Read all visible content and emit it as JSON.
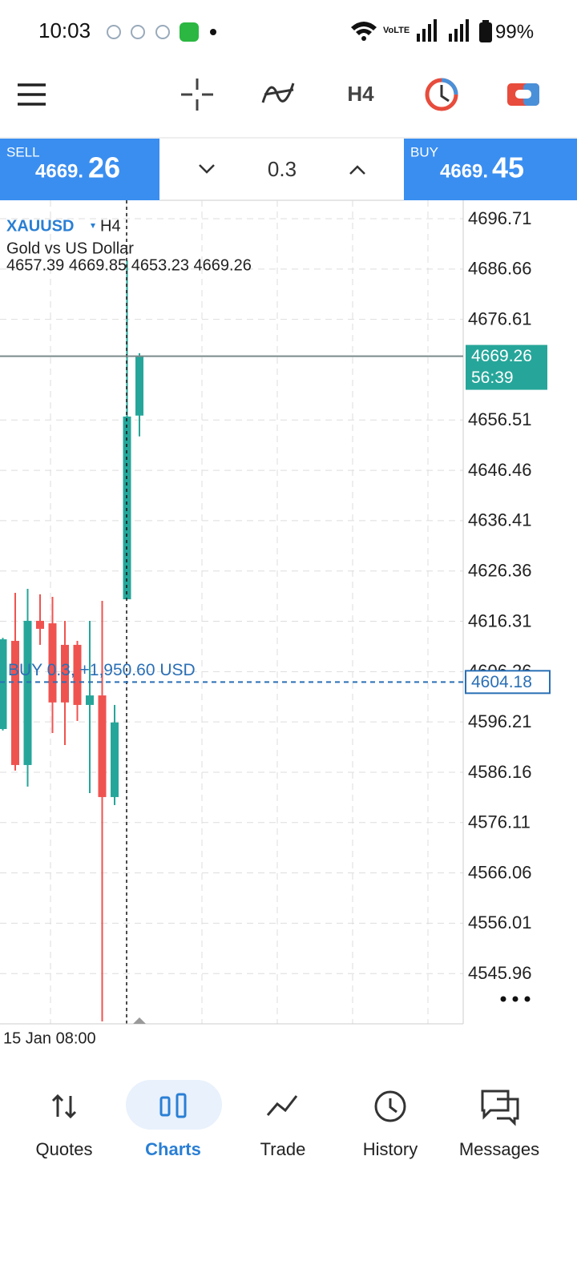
{
  "status_bar": {
    "time": "10:03",
    "battery": "99%"
  },
  "toolbar": {
    "timeframe": "H4"
  },
  "trade_panel": {
    "sell_label": "SELL",
    "sell_price_main": "4669.",
    "sell_price_pips": "26",
    "lot": "0.3",
    "buy_label": "BUY",
    "buy_price_main": "4669.",
    "buy_price_pips": "45"
  },
  "chart": {
    "symbol": "XAUUSD",
    "timeframe": "H4",
    "description": "Gold vs US Dollar",
    "ohlc_text": "4657.39 4669.85 4653.23 4669.26",
    "bid_price": 4669.26,
    "timer": "56:39",
    "position_label": "BUY 0.3, +1,950.60 USD",
    "position_price": 4604.18,
    "time_label": "15 Jan 08:00",
    "ylim": [
      4535.91,
      4700.39
    ],
    "yticks": [
      4696.71,
      4686.66,
      4676.61,
      4656.51,
      4646.46,
      4636.41,
      4626.36,
      4616.31,
      4606.26,
      4596.21,
      4586.16,
      4576.11,
      4566.06,
      4556.01,
      4545.96
    ],
    "up_color": "#26a69a",
    "down_color": "#ef5350",
    "candles": [
      {
        "open": 4594.79,
        "high": 4613.0,
        "low": 4594.5,
        "close": 4612.71
      },
      {
        "open": 4612.4,
        "high": 4622.0,
        "low": 4586.5,
        "close": 4587.6
      },
      {
        "open": 4587.6,
        "high": 4622.8,
        "low": 4583.3,
        "close": 4616.4
      },
      {
        "open": 4616.4,
        "high": 4621.7,
        "low": 4611.6,
        "close": 4614.8
      },
      {
        "open": 4615.9,
        "high": 4621.2,
        "low": 4594.0,
        "close": 4600.1
      },
      {
        "open": 4611.6,
        "high": 4616.4,
        "low": 4591.6,
        "close": 4600.1
      },
      {
        "open": 4611.6,
        "high": 4612.4,
        "low": 4596.4,
        "close": 4599.6
      },
      {
        "open": 4599.6,
        "high": 4616.4,
        "low": 4582.0,
        "close": 4601.5
      },
      {
        "open": 4601.5,
        "high": 4620.4,
        "low": 4536.4,
        "close": 4581.2
      },
      {
        "open": 4581.2,
        "high": 4599.6,
        "low": 4579.6,
        "close": 4596.1
      },
      {
        "open": 4620.7,
        "high": 4688.4,
        "low": 4620.7,
        "close": 4657.2
      },
      {
        "open": 4657.39,
        "high": 4669.85,
        "low": 4653.23,
        "close": 4669.26
      }
    ]
  },
  "nav": {
    "items": [
      "Quotes",
      "Charts",
      "Trade",
      "History",
      "Messages"
    ],
    "active": "Charts"
  }
}
